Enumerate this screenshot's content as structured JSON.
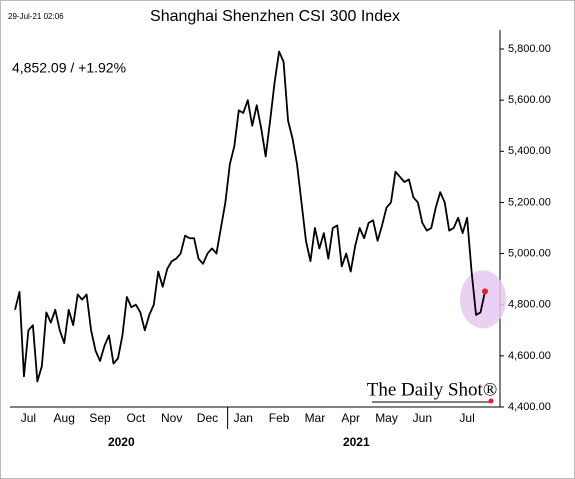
{
  "chart_data": {
    "type": "line",
    "timestamp": "29-Jul-21 02:06",
    "title": "Shanghai Shenzhen CSI 300 Index",
    "annotation": "4,852.09  /  +1.92%",
    "source": "The Daily Shot®",
    "year_labels": [
      "2020",
      "2021"
    ],
    "color": "#000000",
    "categories": [
      null,
      null,
      null,
      "Jul",
      null,
      null,
      null,
      null,
      null,
      null,
      null,
      "Aug",
      null,
      null,
      null,
      null,
      null,
      null,
      null,
      "Sep",
      null,
      null,
      null,
      null,
      null,
      null,
      null,
      "Oct",
      null,
      null,
      null,
      null,
      null,
      null,
      null,
      "Nov",
      null,
      null,
      null,
      null,
      null,
      null,
      null,
      "Dec",
      null,
      null,
      null,
      null,
      null,
      null,
      null,
      "Jan",
      null,
      null,
      null,
      null,
      null,
      null,
      null,
      "Feb",
      null,
      null,
      null,
      null,
      null,
      null,
      null,
      "Mar",
      null,
      null,
      null,
      null,
      null,
      null,
      null,
      "Apr",
      null,
      null,
      null,
      null,
      null,
      null,
      null,
      "May",
      null,
      null,
      null,
      null,
      null,
      null,
      null,
      "Jun",
      null,
      null,
      null,
      null,
      null,
      null,
      null,
      null,
      null,
      "Jul",
      null,
      null,
      null,
      null
    ],
    "values": [
      4780,
      4850,
      4520,
      4700,
      4720,
      4500,
      4560,
      4770,
      4730,
      4780,
      4700,
      4650,
      4780,
      4720,
      4840,
      4820,
      4840,
      4700,
      4620,
      4580,
      4640,
      4680,
      4570,
      4590,
      4680,
      4830,
      4790,
      4800,
      4770,
      4700,
      4760,
      4800,
      4930,
      4870,
      4940,
      4970,
      4980,
      5000,
      5070,
      5060,
      5060,
      4980,
      4960,
      5000,
      5020,
      5000,
      5100,
      5200,
      5350,
      5420,
      5560,
      5550,
      5600,
      5500,
      5580,
      5490,
      5380,
      5520,
      5670,
      5790,
      5750,
      5520,
      5450,
      5350,
      5200,
      5050,
      4970,
      5100,
      5020,
      5080,
      4980,
      5100,
      5110,
      4950,
      5000,
      4930,
      5030,
      5100,
      5060,
      5120,
      5130,
      5050,
      5110,
      5180,
      5200,
      5320,
      5300,
      5280,
      5290,
      5220,
      5200,
      5120,
      5090,
      5100,
      5180,
      5240,
      5200,
      5090,
      5100,
      5140,
      5080,
      5140,
      4930,
      4760,
      4770,
      4852
    ],
    "ylim": [
      4400,
      5800
    ],
    "yticks": [
      {
        "value": 4400,
        "label": "4,400.00"
      },
      {
        "value": 4600,
        "label": "4,600.00"
      },
      {
        "value": 4800,
        "label": "4,800.00"
      },
      {
        "value": 5000,
        "label": "5,000.00"
      },
      {
        "value": 5200,
        "label": "5,200.00"
      },
      {
        "value": 5400,
        "label": "5,400.00"
      },
      {
        "value": 5600,
        "label": "5,600.00"
      },
      {
        "value": 5800,
        "label": "5,800.00"
      }
    ]
  }
}
